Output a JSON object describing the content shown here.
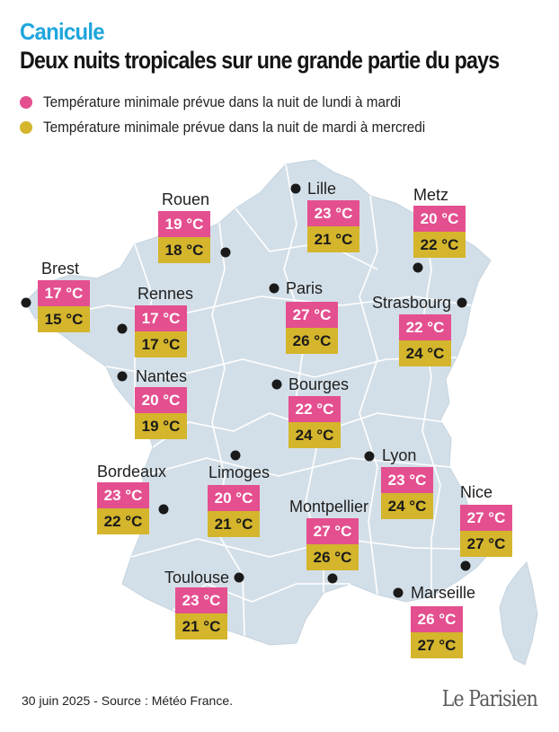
{
  "header": {
    "kicker": "Canicule",
    "title": "Deux nuits tropicales sur une grande partie du pays"
  },
  "legend": [
    {
      "label": "Température minimale prévue dans la nuit de lundi à mardi",
      "color": "#e44f8f"
    },
    {
      "label": "Température minimale prévue dans la nuit de mardi à mercredi",
      "color": "#d4b52c"
    }
  ],
  "map": {
    "land_color": "#d3dfe8",
    "border_color": "#ffffff"
  },
  "cities": [
    {
      "name": "Lille",
      "night1": "23 °C",
      "night2": "21 °C"
    },
    {
      "name": "Metz",
      "night1": "20 °C",
      "night2": "22 °C"
    },
    {
      "name": "Rouen",
      "night1": "19 °C",
      "night2": "18 °C"
    },
    {
      "name": "Brest",
      "night1": "17 °C",
      "night2": "15 °C"
    },
    {
      "name": "Rennes",
      "night1": "17 °C",
      "night2": "17 °C"
    },
    {
      "name": "Paris",
      "night1": "27 °C",
      "night2": "26 °C"
    },
    {
      "name": "Strasbourg",
      "night1": "22 °C",
      "night2": "24 °C"
    },
    {
      "name": "Nantes",
      "night1": "20 °C",
      "night2": "19 °C"
    },
    {
      "name": "Bourges",
      "night1": "22 °C",
      "night2": "24 °C"
    },
    {
      "name": "Lyon",
      "night1": "23 °C",
      "night2": "24 °C"
    },
    {
      "name": "Bordeaux",
      "night1": "23 °C",
      "night2": "22 °C"
    },
    {
      "name": "Limoges",
      "night1": "20 °C",
      "night2": "21 °C"
    },
    {
      "name": "Montpellier",
      "night1": "27 °C",
      "night2": "26 °C"
    },
    {
      "name": "Nice",
      "night1": "27 °C",
      "night2": "27 °C"
    },
    {
      "name": "Toulouse",
      "night1": "23 °C",
      "night2": "21 °C"
    },
    {
      "name": "Marseille",
      "night1": "26 °C",
      "night2": "27 °C"
    }
  ],
  "footer": {
    "source": "30 juin 2025 - Source : Météo France.",
    "logo": "Le Parisien"
  }
}
